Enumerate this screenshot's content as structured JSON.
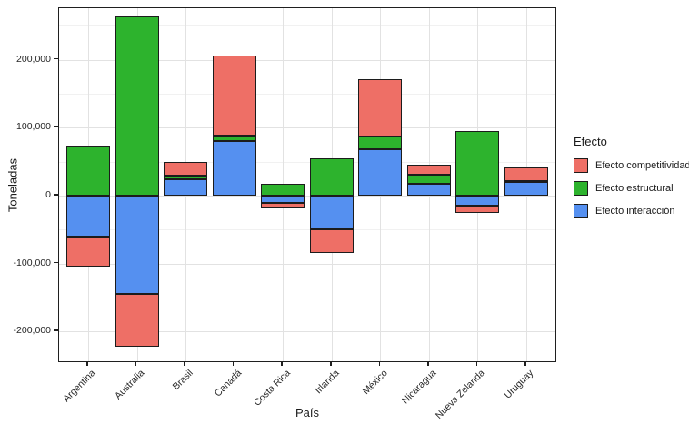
{
  "chart_data": {
    "type": "bar",
    "stacked": true,
    "xlabel": "País",
    "ylabel": "Toneladas",
    "categories": [
      "Argentina",
      "Australia",
      "Brasil",
      "Canadá",
      "Costa Rica",
      "Irlanda",
      "México",
      "Nicaragua",
      "Nueva Zelanda",
      "Uruguay"
    ],
    "series": [
      {
        "name": "Efecto interacción",
        "color": "#5590f0",
        "values": [
          -60000,
          -145000,
          24000,
          80000,
          -11000,
          -50000,
          68000,
          17000,
          -15000,
          20000
        ]
      },
      {
        "name": "Efecto estructural",
        "color": "#2db32d",
        "values": [
          73000,
          264000,
          6000,
          9000,
          17000,
          55000,
          19000,
          14000,
          95000,
          2000
        ]
      },
      {
        "name": "Efecto competitividad",
        "color": "#ee6f66",
        "values": [
          -45000,
          -78000,
          20000,
          117000,
          -8000,
          -35000,
          85000,
          15000,
          -11000,
          19000
        ]
      }
    ],
    "ylim": [
      -244000,
      276000
    ],
    "yticks": [
      {
        "value": 200000,
        "label": "200,000"
      },
      {
        "value": 100000,
        "label": "100,000"
      },
      {
        "value": 0,
        "label": "0"
      },
      {
        "value": -100000,
        "label": "-100,000"
      },
      {
        "value": -200000,
        "label": "-200,000"
      }
    ],
    "yminor": [
      250000,
      150000,
      50000,
      -50000,
      -150000
    ],
    "grid": true,
    "legend": {
      "title": "Efecto",
      "position": "right",
      "items": [
        {
          "label": "Efecto competitividad",
          "color": "#ee6f66"
        },
        {
          "label": "Efecto estructural",
          "color": "#2db32d"
        },
        {
          "label": "Efecto interacción",
          "color": "#5590f0"
        }
      ]
    }
  }
}
